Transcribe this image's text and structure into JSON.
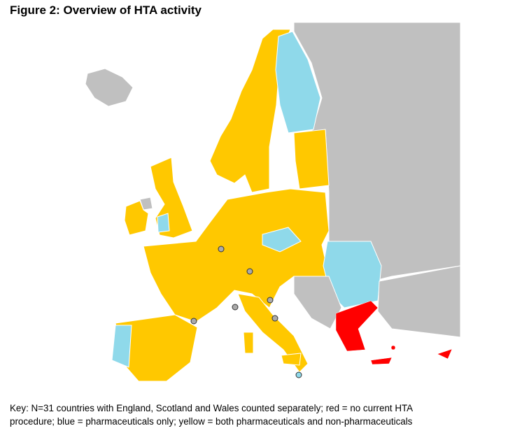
{
  "header": {
    "title": "Figure 2: Overview of HTA activity"
  },
  "key": {
    "lines": [
      "Key: N=31 countries with England, Scotland and Wales counted separately; red = no current HTA",
      "procedure; blue = pharmaceuticals only; yellow = both pharmaceuticals and non-pharmaceuticals"
    ]
  }
}
